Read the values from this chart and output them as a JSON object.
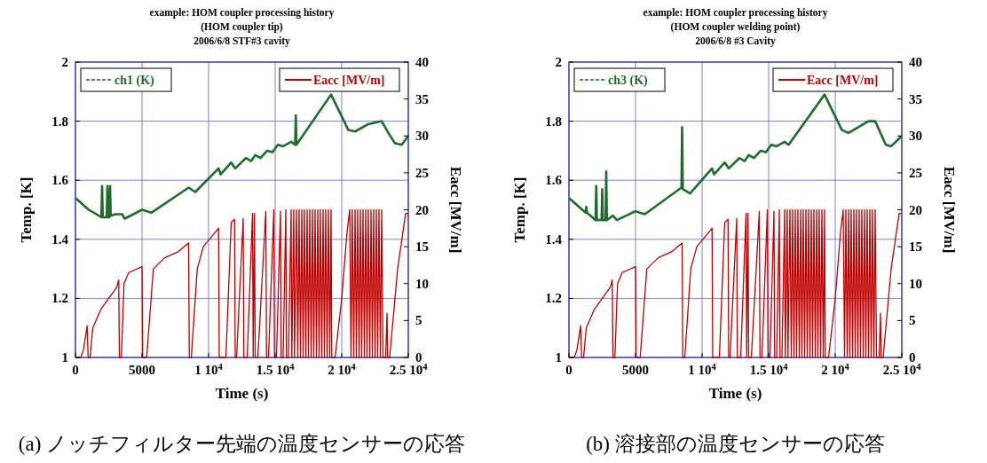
{
  "chart_data": [
    {
      "type": "line",
      "title": "example: HOM coupler processing history",
      "subtitle": "(HOM coupler tip)\n2006/6/8 STF#3 cavity",
      "xlabel": "Time (s)",
      "ylabel": "Temp. [K]",
      "y2label": "Eacc [MV/m]",
      "annotations": [
        "(a)  ノッチフィルター先端の温度センサーの応答"
      ],
      "xlim": [
        0,
        25000
      ],
      "xticks": [
        {
          "value": 0,
          "label": "0"
        },
        5000,
        {
          "value": 10000,
          "label": "1 10$^{4}$"
        },
        {
          "value": 15000,
          "label": "1.5 10$^{4}$"
        },
        {
          "value": 20000,
          "label": "2 10$^{4}$"
        },
        {
          "value": 25000,
          "label": "2.5 10$^{4}$"
        }
      ],
      "ylim": [
        1,
        2
      ],
      "yticks": [
        1,
        1.2,
        1.4,
        1.6,
        1.8,
        2
      ],
      "y2lim": [
        0,
        40
      ],
      "y2ticks": [
        {
          "value": 0,
          "label": "0"
        },
        5,
        10,
        15,
        20,
        25,
        30,
        35,
        40
      ],
      "grid": true,
      "legend": "top",
      "marker": "none",
      "series": [
        {
          "name": "ch1 (K)",
          "color": "#1e6b2a",
          "x": [
            0,
            1000,
            1950,
            2000,
            2050,
            2350,
            2400,
            2450,
            2550,
            2600,
            2650,
            3000,
            3500,
            3700,
            5000,
            5700,
            8500,
            9000,
            10750,
            10900,
            11700,
            12000,
            12800,
            13200,
            13500,
            13900,
            14400,
            14800,
            15200,
            15600,
            16200,
            16500,
            16550,
            16600,
            19200,
            20500,
            21000,
            22000,
            23000,
            23500,
            24000,
            24500,
            25000
          ],
          "values": [
            1.54,
            1.5,
            1.475,
            1.58,
            1.475,
            1.475,
            1.58,
            1.475,
            1.475,
            1.58,
            1.48,
            1.485,
            1.485,
            1.47,
            1.5,
            1.49,
            1.575,
            1.56,
            1.64,
            1.62,
            1.66,
            1.64,
            1.675,
            1.665,
            1.685,
            1.675,
            1.7,
            1.695,
            1.72,
            1.715,
            1.73,
            1.72,
            1.82,
            1.72,
            1.89,
            1.77,
            1.765,
            1.79,
            1.8,
            1.76,
            1.725,
            1.72,
            1.75
          ]
        },
        {
          "name": "Eacc [MV/m]",
          "color": "#c00000",
          "axis": "y2",
          "x": [
            0,
            400,
            600,
            880,
            950,
            1100,
            1300,
            1900,
            2300,
            3100,
            3250,
            3300,
            3450,
            3650,
            4000,
            5000,
            5050,
            5350,
            5850,
            6700,
            7700,
            8500,
            8550,
            8700,
            9150,
            9600,
            10750,
            10800,
            11300,
            11700,
            11950,
            12000,
            12100,
            12600,
            12650,
            12900,
            13300,
            13350,
            13450,
            13500,
            13700,
            14300,
            14350,
            14500,
            14900,
            14950,
            15100,
            15400,
            15450,
            15600,
            15800,
            15850,
            16000,
            16200,
            16250,
            16400,
            16450,
            16600,
            16700,
            16800,
            16900,
            17000,
            17100,
            17200,
            17300,
            17400,
            17500,
            17600,
            17700,
            17800,
            17900,
            18000,
            18100,
            18200,
            18300,
            18400,
            18500,
            18600,
            18700,
            18800,
            18900,
            19000,
            19100,
            19200,
            19250,
            19500,
            20000,
            20400,
            20600,
            20700,
            20800,
            20900,
            21000,
            21100,
            21200,
            21300,
            21400,
            21500,
            21600,
            21700,
            21800,
            21900,
            22000,
            22100,
            22200,
            22300,
            22400,
            22500,
            22600,
            22700,
            22800,
            22900,
            23000,
            23100,
            23300,
            23400,
            23450,
            23600,
            24200,
            24800,
            25000
          ],
          "values": [
            0,
            0,
            1,
            4.3,
            0,
            0,
            4,
            6.5,
            7.5,
            9.5,
            10.5,
            0,
            0,
            10,
            11.5,
            12.3,
            0,
            0,
            12,
            13.5,
            14.3,
            15.5,
            0,
            0,
            12,
            15,
            17.5,
            0,
            0,
            18.3,
            18.7,
            0,
            0,
            18.8,
            0,
            0,
            19.5,
            0,
            19.5,
            0,
            0,
            19.8,
            0,
            0,
            20,
            0,
            0,
            19.8,
            0,
            0,
            20,
            0,
            0,
            20,
            0,
            20,
            0,
            20,
            0,
            20,
            0,
            20,
            0,
            20,
            0,
            20,
            0,
            20,
            0,
            20,
            0,
            20,
            0,
            20,
            0,
            20,
            0,
            20,
            0,
            20,
            0,
            20,
            0,
            20,
            0,
            0,
            8,
            17,
            20,
            0,
            20,
            0,
            20,
            0,
            20,
            0,
            20,
            0,
            20,
            0,
            20,
            0,
            20,
            0,
            20,
            0,
            20,
            0,
            20,
            0,
            20,
            0,
            20,
            0,
            0,
            6,
            0,
            0,
            12,
            19.5,
            19.5
          ]
        }
      ]
    },
    {
      "type": "line",
      "title": "example: HOM coupler processing history",
      "subtitle": "(HOM coupler welding point)\n2006/6/8 #3 Cavity",
      "xlabel": "Time (s)",
      "ylabel": "Temp. [K]",
      "y2label": "Eacc [MV/m]",
      "annotations": [
        "(b)  溶接部の温度センサーの応答"
      ],
      "xlim": [
        0,
        25000
      ],
      "xticks": [
        {
          "value": 0,
          "label": "0"
        },
        5000,
        {
          "value": 10000,
          "label": "1 10$^{4}$"
        },
        {
          "value": 15000,
          "label": "1.5 10$^{4}$"
        },
        {
          "value": 20000,
          "label": "2 10$^{4}$"
        },
        {
          "value": 25000,
          "label": "2.5 10$^{4}$"
        }
      ],
      "ylim": [
        1,
        2
      ],
      "yticks": [
        1,
        1.2,
        1.4,
        1.6,
        1.8,
        2
      ],
      "y2lim": [
        0,
        40
      ],
      "y2ticks": [
        {
          "value": 0,
          "label": "0"
        },
        5,
        10,
        15,
        20,
        25,
        30,
        35,
        40
      ],
      "grid": true,
      "legend": "top",
      "marker": "none",
      "series": [
        {
          "name": "ch3 (K)",
          "color": "#1e6b2a",
          "x": [
            0,
            1000,
            1250,
            1300,
            1350,
            2000,
            2050,
            2100,
            2150,
            2450,
            2500,
            2550,
            2750,
            2800,
            2850,
            3000,
            3300,
            3600,
            5000,
            5700,
            8450,
            8500,
            8550,
            9100,
            10750,
            10900,
            11700,
            12000,
            12800,
            13200,
            13500,
            13900,
            14400,
            14800,
            15200,
            15600,
            16200,
            16500,
            19200,
            20500,
            21000,
            22500,
            23000,
            23800,
            24200,
            25000
          ],
          "values": [
            1.54,
            1.5,
            1.49,
            1.51,
            1.49,
            1.465,
            1.58,
            1.465,
            1.465,
            1.465,
            1.57,
            1.465,
            1.465,
            1.63,
            1.465,
            1.47,
            1.48,
            1.465,
            1.495,
            1.485,
            1.575,
            1.78,
            1.57,
            1.555,
            1.64,
            1.62,
            1.66,
            1.64,
            1.675,
            1.665,
            1.685,
            1.675,
            1.7,
            1.695,
            1.72,
            1.715,
            1.73,
            1.72,
            1.89,
            1.77,
            1.76,
            1.8,
            1.8,
            1.72,
            1.715,
            1.75
          ]
        },
        {
          "name": "Eacc [MV/m]",
          "color": "#c00000",
          "axis": "y2",
          "x": [
            0,
            400,
            600,
            880,
            950,
            1100,
            1300,
            1900,
            2300,
            3100,
            3250,
            3300,
            3450,
            3650,
            4000,
            5000,
            5050,
            5350,
            5850,
            6700,
            7700,
            8500,
            8550,
            8700,
            9150,
            9600,
            10750,
            10800,
            11300,
            11700,
            11950,
            12000,
            12100,
            12600,
            12650,
            12900,
            13300,
            13350,
            13450,
            13500,
            13700,
            14300,
            14350,
            14500,
            14900,
            14950,
            15100,
            15400,
            15450,
            15600,
            15800,
            15850,
            16000,
            16200,
            16250,
            16400,
            16450,
            16600,
            16700,
            16800,
            16900,
            17000,
            17100,
            17200,
            17300,
            17400,
            17500,
            17600,
            17700,
            17800,
            17900,
            18000,
            18100,
            18200,
            18300,
            18400,
            18500,
            18600,
            18700,
            18800,
            18900,
            19000,
            19100,
            19200,
            19250,
            19500,
            20000,
            20400,
            20600,
            20700,
            20800,
            20900,
            21000,
            21100,
            21200,
            21300,
            21400,
            21500,
            21600,
            21700,
            21800,
            21900,
            22000,
            22100,
            22200,
            22300,
            22400,
            22500,
            22600,
            22700,
            22800,
            22900,
            23000,
            23100,
            23300,
            23400,
            23450,
            23600,
            24200,
            24800,
            25000
          ],
          "values": [
            0,
            0,
            1,
            4.3,
            0,
            0,
            4,
            6.5,
            7.5,
            9.5,
            10.5,
            0,
            0,
            10,
            11.5,
            12.3,
            0,
            0,
            12,
            13.5,
            14.3,
            15.5,
            0,
            0,
            12,
            15,
            17.5,
            0,
            0,
            18.3,
            18.7,
            0,
            0,
            18.8,
            0,
            0,
            19.5,
            0,
            19.5,
            0,
            0,
            19.8,
            0,
            0,
            20,
            0,
            0,
            19.8,
            0,
            0,
            20,
            0,
            0,
            20,
            0,
            20,
            0,
            20,
            0,
            20,
            0,
            20,
            0,
            20,
            0,
            20,
            0,
            20,
            0,
            20,
            0,
            20,
            0,
            20,
            0,
            20,
            0,
            20,
            0,
            20,
            0,
            20,
            0,
            20,
            0,
            0,
            8,
            17,
            20,
            0,
            20,
            0,
            20,
            0,
            20,
            0,
            20,
            0,
            20,
            0,
            20,
            0,
            20,
            0,
            20,
            0,
            20,
            0,
            20,
            0,
            20,
            0,
            20,
            0,
            0,
            6,
            0,
            0,
            12,
            19.5,
            19.5
          ]
        }
      ]
    }
  ]
}
